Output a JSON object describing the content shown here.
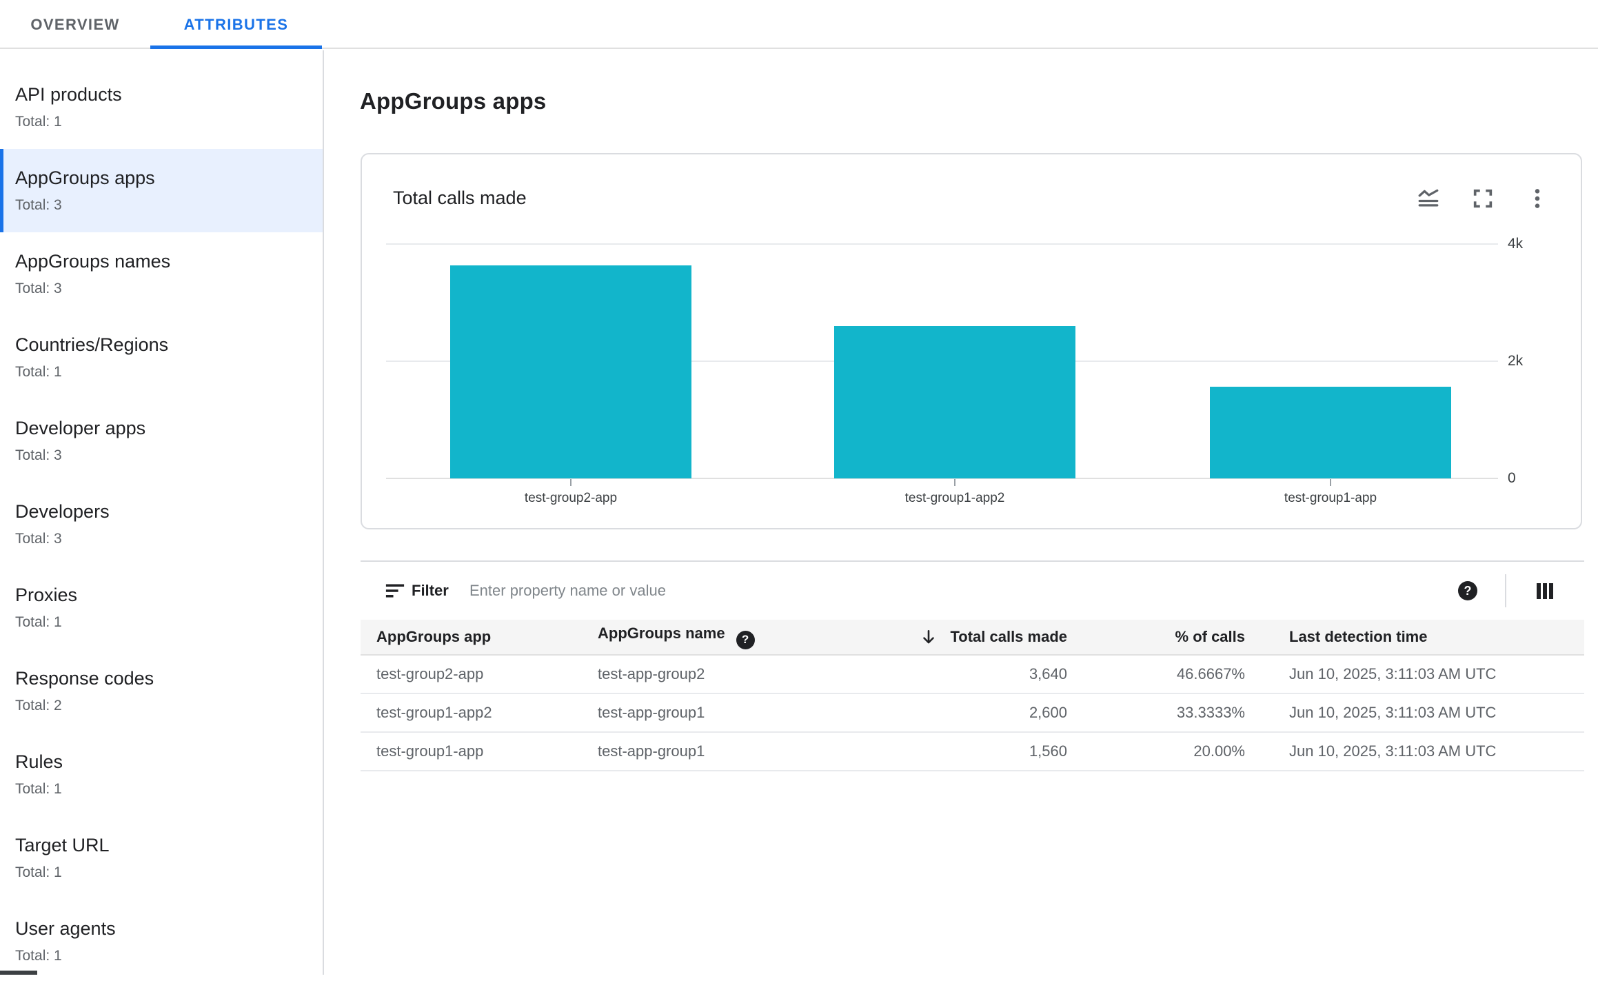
{
  "tabs": {
    "overview": "OVERVIEW",
    "attributes": "ATTRIBUTES"
  },
  "sidebar": {
    "items": [
      {
        "label": "API products",
        "total": "Total: 1",
        "selected": false
      },
      {
        "label": "AppGroups apps",
        "total": "Total: 3",
        "selected": true
      },
      {
        "label": "AppGroups names",
        "total": "Total: 3",
        "selected": false
      },
      {
        "label": "Countries/Regions",
        "total": "Total: 1",
        "selected": false
      },
      {
        "label": "Developer apps",
        "total": "Total: 3",
        "selected": false
      },
      {
        "label": "Developers",
        "total": "Total: 3",
        "selected": false
      },
      {
        "label": "Proxies",
        "total": "Total: 1",
        "selected": false
      },
      {
        "label": "Response codes",
        "total": "Total: 2",
        "selected": false
      },
      {
        "label": "Rules",
        "total": "Total: 1",
        "selected": false
      },
      {
        "label": "Target URL",
        "total": "Total: 1",
        "selected": false
      },
      {
        "label": "User agents",
        "total": "Total: 1",
        "selected": false
      }
    ]
  },
  "page": {
    "title": "AppGroups apps"
  },
  "chart_card": {
    "title": "Total calls made"
  },
  "chart_data": {
    "type": "bar",
    "title": "Total calls made",
    "categories": [
      "test-group2-app",
      "test-group1-app2",
      "test-group1-app"
    ],
    "values": [
      3640,
      2600,
      1560
    ],
    "xlabel": "",
    "ylabel": "",
    "ylim": [
      0,
      4000
    ],
    "yticks": [
      {
        "value": 4000,
        "label": "4k"
      },
      {
        "value": 2000,
        "label": "2k"
      },
      {
        "value": 0,
        "label": "0"
      }
    ],
    "bar_color": "#12b5cb",
    "grid": true,
    "legend": false
  },
  "filter": {
    "label": "Filter",
    "placeholder": "Enter property name or value"
  },
  "table": {
    "columns": [
      {
        "label": "AppGroups app"
      },
      {
        "label": "AppGroups name",
        "help": true
      },
      {
        "label": "Total calls made",
        "sorted": "desc",
        "align": "right"
      },
      {
        "label": "% of calls",
        "align": "right"
      },
      {
        "label": "Last detection time"
      }
    ],
    "rows": [
      [
        "test-group2-app",
        "test-app-group2",
        "3,640",
        "46.6667%",
        "Jun 10, 2025, 3:11:03 AM UTC"
      ],
      [
        "test-group1-app2",
        "test-app-group1",
        "2,600",
        "33.3333%",
        "Jun 10, 2025, 3:11:03 AM UTC"
      ],
      [
        "test-group1-app",
        "test-app-group1",
        "1,560",
        "20.00%",
        "Jun 10, 2025, 3:11:03 AM UTC"
      ]
    ]
  },
  "colors": {
    "accent": "#1a73e8",
    "bar": "#12b5cb",
    "selected_bg": "#e8f0fe"
  }
}
